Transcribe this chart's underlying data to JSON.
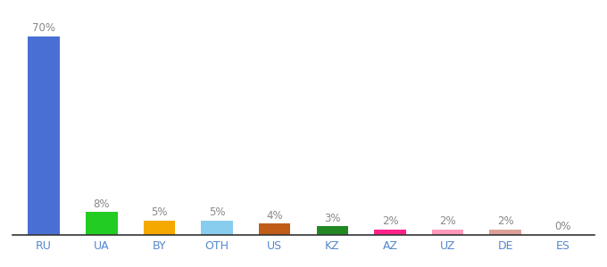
{
  "categories": [
    "RU",
    "UA",
    "BY",
    "OTH",
    "US",
    "KZ",
    "AZ",
    "UZ",
    "DE",
    "ES"
  ],
  "values": [
    70,
    8,
    5,
    5,
    4,
    3,
    2,
    2,
    2,
    0
  ],
  "bar_colors": [
    "#4a6fd4",
    "#22cc22",
    "#f5a800",
    "#88ccee",
    "#c05c18",
    "#228822",
    "#ff2288",
    "#ff99bb",
    "#dda099",
    "#ffdddd"
  ],
  "label_fontsize": 8.5,
  "tick_fontsize": 9,
  "ylim": [
    0,
    78
  ],
  "background_color": "#ffffff",
  "label_color": "#888888",
  "tick_color": "#5588cc"
}
